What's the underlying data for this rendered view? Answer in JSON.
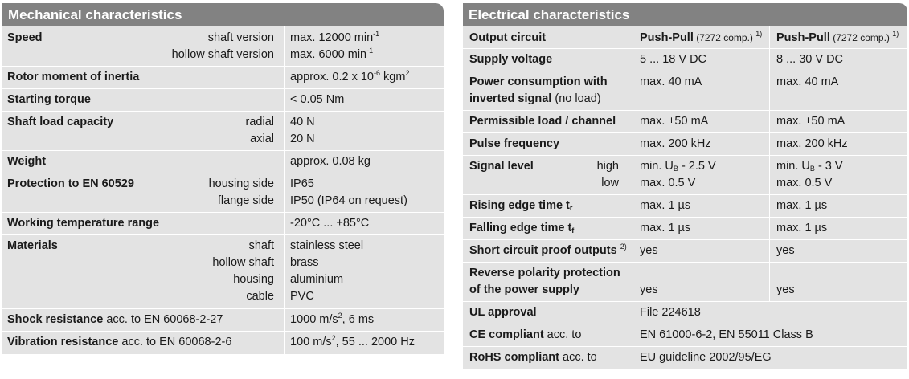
{
  "mechanical": {
    "title": "Mechanical characteristics",
    "speed": {
      "label": "Speed",
      "sub1": "shaft version",
      "val1_pre": "max. 12000 min",
      "val1_sup": "-1",
      "sub2": "hollow shaft version",
      "val2_pre": "max. 6000 min",
      "val2_sup": "-1"
    },
    "rotor": {
      "label": "Rotor moment of inertia",
      "val_pre": "approx. 0.2 x 10",
      "val_sup": "-6",
      "val_mid": " kgm",
      "val_sup2": "2"
    },
    "torque": {
      "label": "Starting torque",
      "value": "< 0.05 Nm"
    },
    "shaft_load": {
      "label": "Shaft load capacity",
      "sub1": "radial",
      "val1": "40 N",
      "sub2": "axial",
      "val2": "20 N"
    },
    "weight": {
      "label": "Weight",
      "value": "approx. 0.08 kg"
    },
    "protection": {
      "label": "Protection to EN 60529",
      "sub1": "housing side",
      "val1": "IP65",
      "sub2": "flange side",
      "val2": "IP50 (IP64 on request)"
    },
    "temperature": {
      "label": "Working temperature range",
      "value": "-20°C ... +85°C"
    },
    "materials": {
      "label": "Materials",
      "sub1": "shaft",
      "val1": "stainless steel",
      "sub2": "hollow shaft",
      "val2": "brass",
      "sub3": "housing",
      "val3": "aluminium",
      "sub4": "cable",
      "val4": "PVC"
    },
    "shock": {
      "label": "Shock resistance",
      "label_rest": " acc. to EN 60068-2-27",
      "val_pre": "1000 m/s",
      "val_sup": "2",
      "val_post": ", 6 ms"
    },
    "vibration": {
      "label": "Vibration resistance",
      "label_rest": " acc. to EN 60068-2-6",
      "val_pre": "100 m/s",
      "val_sup": "2",
      "val_post": ", 55 ... 2000 Hz"
    }
  },
  "electrical": {
    "title": "Electrical characteristics",
    "output": {
      "label": "Output circuit",
      "c1_b": "Push-Pull",
      "c1_n": " (7272 comp.) ",
      "c1_sup": "1)",
      "c2_b": "Push-Pull",
      "c2_n": " (7272 comp.) ",
      "c2_sup": "1)"
    },
    "supply": {
      "label": "Supply voltage",
      "c1": "5 ... 18 V DC",
      "c2": "8 ... 30 V DC"
    },
    "power": {
      "label1": "Power consumption with",
      "label2": "inverted signal",
      "label2_rest": " (no load)",
      "c1": "max. 40 mA",
      "c2": "max. 40 mA"
    },
    "load": {
      "label": "Permissible load / channel",
      "c1": "max. ±50 mA",
      "c2": "max. ±50 mA"
    },
    "pulse": {
      "label": "Pulse frequency",
      "c1": "max. 200 kHz",
      "c2": "max. 200 kHz"
    },
    "signal": {
      "label": "Signal level",
      "sub1": "high",
      "sub2": "low",
      "c1a_pre": "min. U",
      "c1a_sub": "B",
      "c1a_post": " - 2.5 V",
      "c1b": "max. 0.5 V",
      "c2a_pre": "min. U",
      "c2a_sub": "B",
      "c2a_post": " - 3 V",
      "c2b": "max. 0.5 V"
    },
    "rising": {
      "label": "Rising edge time t",
      "label_sub": "r",
      "c1": "max. 1 µs",
      "c2": "max. 1 µs"
    },
    "falling": {
      "label": "Falling edge time t",
      "label_sub": "f",
      "c1": "max. 1 µs",
      "c2": "max. 1 µs"
    },
    "short": {
      "label": "Short circuit proof outputs",
      "label_sup": "2)",
      "c1": "yes",
      "c2": "yes"
    },
    "reverse": {
      "label1": "Reverse polarity protection",
      "label2": "of the power supply",
      "c1": "yes",
      "c2": "yes"
    },
    "ul": {
      "label": "UL approval",
      "value": "File 224618"
    },
    "ce": {
      "label": "CE compliant",
      "label_rest": " acc. to",
      "value": "EN 61000-6-2, EN 55011 Class B"
    },
    "rohs": {
      "label": "RoHS compliant",
      "label_rest": " acc. to",
      "value": "EU guideline 2002/95/EG"
    }
  }
}
